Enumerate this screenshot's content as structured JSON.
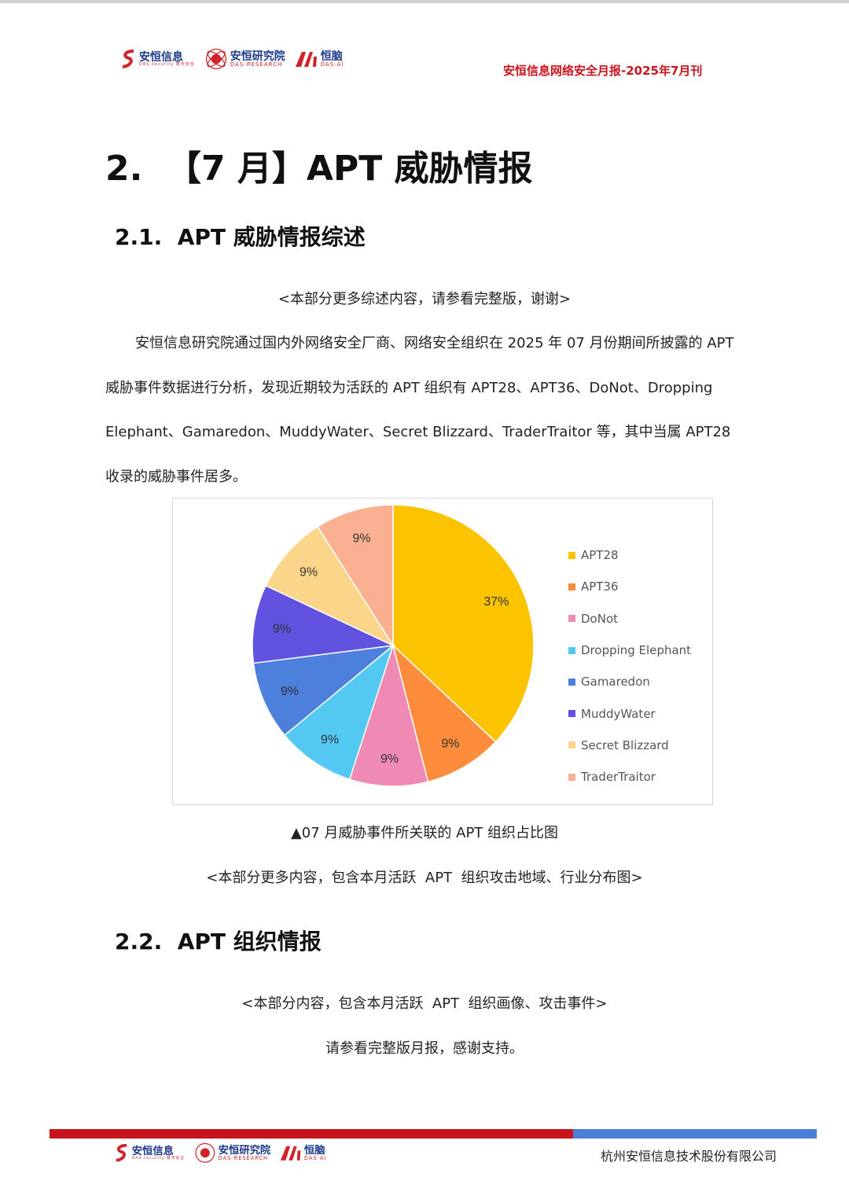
{
  "header": {
    "logos": [
      {
        "cn": "安恒信息",
        "en": "DAS-security 数字安全"
      },
      {
        "cn": "安恒研究院",
        "en": "DAS-RESEARCH"
      },
      {
        "cn": "恒脑",
        "en": "DAS-AI"
      }
    ],
    "title": "安恒信息网络安全月报-2025年7月刊"
  },
  "section_title": "2.  【7 月】APT 威胁情报",
  "subsection_1": "2.1.  APT 威胁情报综述",
  "note_1": "<本部分更多综述内容，请参看完整版，谢谢>",
  "paragraph_lines": [
    "安恒信息研究院通过国内外网络安全厂商、网络安全组织在 2025 年 07 月份期间所披露的 APT",
    "威胁事件数据进行分析，发现近期较为活跃的 APT 组织有 APT28、APT36、DoNot、Dropping",
    "Elephant、Gamaredon、MuddyWater、Secret Blizzard、TraderTraitor 等，其中当属 APT28",
    "收录的威胁事件居多。"
  ],
  "chart_data": {
    "type": "pie",
    "categories": [
      "APT28",
      "APT36",
      "DoNot",
      "Dropping Elephant",
      "Gamaredon",
      "MuddyWater",
      "Secret Blizzard",
      "TraderTraitor"
    ],
    "values": [
      37,
      9,
      9,
      9,
      9,
      9,
      9,
      9
    ],
    "labels": [
      "37%",
      "9%",
      "9%",
      "9%",
      "9%",
      "9%",
      "9%",
      "9%"
    ],
    "colors": [
      "#fbc300",
      "#fd8c3c",
      "#ee8ab4",
      "#52c8f2",
      "#4d7fdc",
      "#6152e0",
      "#fbd58a",
      "#fbb091"
    ],
    "legend_position": "right",
    "start": "top",
    "direction": "clockwise"
  },
  "caption": "▲07 月威胁事件所关联的 APT 组织占比图",
  "note_2": "<本部分更多内容，包含本月活跃  APT  组织攻击地域、行业分布图>",
  "subsection_2": "2.2.  APT 组织情报",
  "note_3": "<本部分内容，包含本月活跃  APT  组织画像、攻击事件>",
  "note_4": "请参看完整版月报，感谢支持。",
  "footer": {
    "company": "杭州安恒信息技术股份有限公司",
    "bar_colors": [
      "#c8151d",
      "#4a7fd8"
    ]
  }
}
